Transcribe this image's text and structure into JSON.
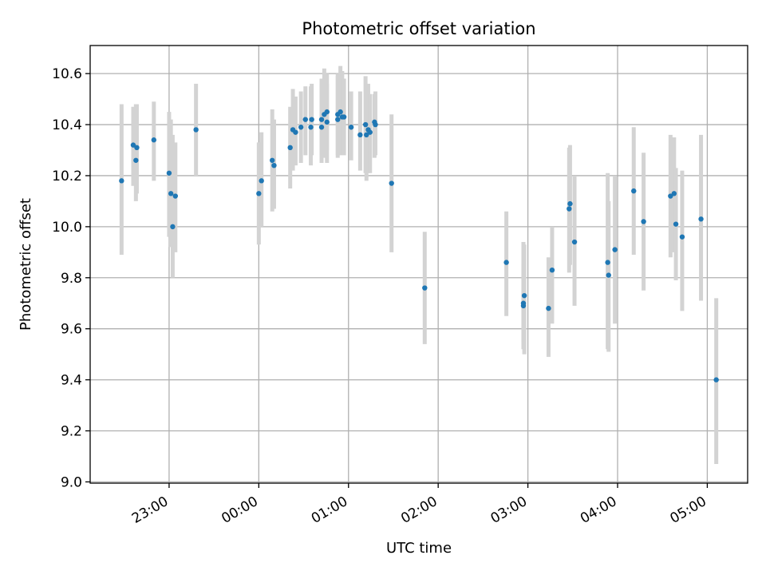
{
  "chart_data": {
    "type": "scatter",
    "title": "Photometric offset variation",
    "xlabel": "UTC time",
    "ylabel": "Photometric offset",
    "xlim": [
      -1.88,
      5.45
    ],
    "ylim": [
      8.995,
      10.71
    ],
    "grid": true,
    "x_tick_values": [
      -1,
      0,
      1,
      2,
      3,
      4,
      5
    ],
    "x_tick_labels": [
      "23:00",
      "00:00",
      "01:00",
      "02:00",
      "03:00",
      "04:00",
      "05:00"
    ],
    "y_tick_values": [
      9.0,
      9.2,
      9.4,
      9.6,
      9.8,
      10.0,
      10.2,
      10.4,
      10.6
    ],
    "y_tick_labels": [
      "9.0",
      "9.2",
      "9.4",
      "9.6",
      "9.8",
      "10.0",
      "10.2",
      "10.4",
      "10.6"
    ],
    "x_unit_note": "hours relative to 00:00 UTC",
    "series": [
      {
        "name": "offset",
        "x": [
          -1.53,
          -1.4,
          -1.37,
          -1.36,
          -1.17,
          -1.0,
          -0.98,
          -0.96,
          -0.93,
          -0.7,
          0.0,
          0.03,
          0.15,
          0.17,
          0.35,
          0.38,
          0.41,
          0.47,
          0.52,
          0.58,
          0.59,
          0.7,
          0.7,
          0.73,
          0.76,
          0.76,
          0.88,
          0.88,
          0.91,
          0.93,
          0.95,
          1.03,
          1.13,
          1.19,
          1.2,
          1.22,
          1.24,
          1.29,
          1.3,
          1.48,
          1.85,
          2.76,
          2.95,
          2.95,
          2.96,
          3.23,
          3.27,
          3.46,
          3.47,
          3.52,
          3.89,
          3.9,
          3.97,
          4.18,
          4.29,
          4.59,
          4.63,
          4.65,
          4.72,
          4.93,
          5.1
        ],
        "y": [
          10.18,
          10.32,
          10.26,
          10.31,
          10.34,
          10.21,
          10.13,
          10.0,
          10.12,
          10.38,
          10.13,
          10.18,
          10.26,
          10.24,
          10.31,
          10.38,
          10.37,
          10.39,
          10.42,
          10.39,
          10.42,
          10.42,
          10.39,
          10.44,
          10.45,
          10.41,
          10.44,
          10.42,
          10.45,
          10.43,
          10.43,
          10.39,
          10.36,
          10.4,
          10.36,
          10.38,
          10.37,
          10.41,
          10.4,
          10.17,
          9.76,
          9.86,
          9.69,
          9.7,
          9.73,
          9.68,
          9.83,
          10.07,
          10.09,
          9.94,
          9.86,
          9.81,
          9.91,
          10.14,
          10.02,
          10.12,
          10.13,
          10.01,
          9.96,
          10.03,
          9.4
        ],
        "yerr_low": [
          9.89,
          10.16,
          10.1,
          10.13,
          10.18,
          9.96,
          9.92,
          9.8,
          9.9,
          10.2,
          9.93,
          10.0,
          10.06,
          10.07,
          10.15,
          10.22,
          10.24,
          10.25,
          10.28,
          10.24,
          10.28,
          10.25,
          10.28,
          10.27,
          10.3,
          10.25,
          10.28,
          10.27,
          10.28,
          10.29,
          10.28,
          10.26,
          10.22,
          10.21,
          10.18,
          10.21,
          10.21,
          10.27,
          10.28,
          9.9,
          9.54,
          9.65,
          9.55,
          9.52,
          9.5,
          9.49,
          9.62,
          9.82,
          9.85,
          9.69,
          9.52,
          9.51,
          9.62,
          9.89,
          9.75,
          9.88,
          9.9,
          9.79,
          9.67,
          9.71,
          9.07
        ],
        "yerr_high": [
          10.48,
          10.47,
          10.48,
          10.48,
          10.49,
          10.45,
          10.42,
          10.36,
          10.33,
          10.56,
          10.33,
          10.37,
          10.46,
          10.42,
          10.47,
          10.54,
          10.51,
          10.53,
          10.55,
          10.55,
          10.56,
          10.58,
          10.56,
          10.62,
          10.6,
          10.56,
          10.59,
          10.6,
          10.63,
          10.61,
          10.58,
          10.53,
          10.53,
          10.59,
          10.55,
          10.56,
          10.52,
          10.52,
          10.53,
          10.44,
          9.98,
          10.06,
          9.85,
          9.94,
          9.93,
          9.88,
          10.0,
          10.31,
          10.32,
          10.2,
          10.21,
          10.1,
          10.2,
          10.39,
          10.29,
          10.36,
          10.35,
          10.23,
          10.22,
          10.36,
          9.72
        ]
      }
    ]
  },
  "colors": {
    "point": "#1f77b4",
    "errorbar": "#d3d3d3",
    "grid": "#b0b0b0",
    "axes": "#000000"
  }
}
